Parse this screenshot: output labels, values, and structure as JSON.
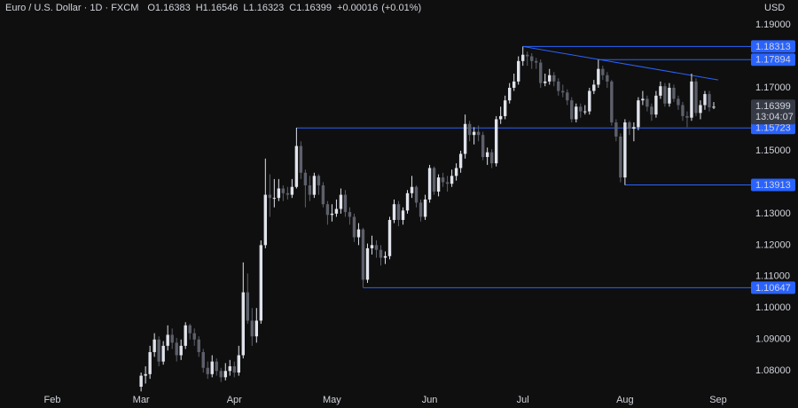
{
  "chart_data": {
    "type": "candlestick",
    "title": "Euro / U.S. Dollar · 1D · FXCM",
    "ohlc_labels": [
      "O",
      "H",
      "L",
      "C"
    ],
    "change": {
      "value": 0.00016,
      "label": "+0.00016"
    },
    "change_pct": {
      "value": 0.01,
      "label": "(+0.01%)"
    },
    "currency": "USD",
    "countdown": "13:04:07",
    "up_color": "#e0e3eb",
    "down_color": "#5d606b",
    "level_color": "#2962ff",
    "grid": false,
    "ylim": [
      1.075,
      1.1979
    ],
    "yticks": [
      {
        "value": 1.19,
        "label": "1.19000"
      },
      {
        "value": 1.17,
        "label": "1.17000"
      },
      {
        "value": 1.15,
        "label": "1.15000"
      },
      {
        "value": 1.13,
        "label": "1.13000"
      },
      {
        "value": 1.12,
        "label": "1.12000"
      },
      {
        "value": 1.11,
        "label": "1.11000"
      },
      {
        "value": 1.1,
        "label": "1.10000"
      },
      {
        "value": 1.09,
        "label": "1.09000"
      },
      {
        "value": 1.08,
        "label": "1.08000"
      }
    ],
    "levels": [
      1.18313,
      1.17894,
      1.15723,
      1.13913,
      1.10647
    ],
    "trendline": [
      1.18313,
      1.1725
    ],
    "categories": [
      "Feb",
      null,
      null,
      null,
      null,
      null,
      null,
      null,
      null,
      null,
      null,
      null,
      null,
      null,
      null,
      null,
      null,
      null,
      null,
      null,
      "Mar",
      null,
      null,
      null,
      null,
      null,
      null,
      null,
      null,
      null,
      null,
      null,
      null,
      null,
      null,
      null,
      null,
      null,
      null,
      null,
      null,
      "Apr",
      null,
      null,
      null,
      null,
      null,
      null,
      null,
      null,
      null,
      null,
      null,
      null,
      null,
      null,
      null,
      null,
      null,
      null,
      null,
      null,
      null,
      "May",
      null,
      null,
      null,
      null,
      null,
      null,
      null,
      null,
      null,
      null,
      null,
      null,
      null,
      null,
      null,
      null,
      null,
      null,
      null,
      null,
      null,
      "Jun",
      null,
      null,
      null,
      null,
      null,
      null,
      null,
      null,
      null,
      null,
      null,
      null,
      null,
      null,
      null,
      null,
      null,
      null,
      null,
      null,
      "Jul",
      null,
      null,
      null,
      null,
      null,
      null,
      null,
      null,
      null,
      null,
      null,
      null,
      null,
      null,
      null,
      null,
      null,
      null,
      null,
      null,
      null,
      null,
      "Aug",
      null,
      null,
      null,
      null,
      null,
      null,
      null,
      null,
      null,
      null,
      null,
      null,
      null,
      null,
      null,
      null,
      null,
      null,
      null,
      null,
      "Sep"
    ],
    "candles": [
      null,
      null,
      null,
      null,
      null,
      null,
      null,
      null,
      null,
      null,
      null,
      null,
      null,
      null,
      null,
      null,
      null,
      null,
      null,
      null,
      [
        1.075,
        1.0795,
        1.0735,
        1.0785
      ],
      [
        1.0785,
        1.0815,
        1.076,
        1.079
      ],
      [
        1.079,
        1.088,
        1.0775,
        1.086
      ],
      [
        1.086,
        1.092,
        1.0845,
        1.09
      ],
      [
        1.09,
        1.091,
        1.0815,
        1.083
      ],
      [
        1.083,
        1.0895,
        1.082,
        1.088
      ],
      [
        1.088,
        1.0945,
        1.0865,
        1.0915
      ],
      [
        1.0915,
        1.0935,
        1.087,
        1.089
      ],
      [
        1.089,
        1.0905,
        1.083,
        1.085
      ],
      [
        1.085,
        1.09,
        1.0835,
        1.088
      ],
      [
        1.088,
        1.0955,
        1.087,
        1.0945
      ],
      [
        1.0945,
        1.095,
        1.09,
        1.092
      ],
      [
        1.092,
        1.0935,
        1.088,
        1.09
      ],
      [
        1.09,
        1.091,
        1.0845,
        1.086
      ],
      [
        1.086,
        1.087,
        1.0795,
        1.081
      ],
      [
        1.081,
        1.083,
        1.0775,
        1.079
      ],
      [
        1.079,
        1.085,
        1.078,
        1.083
      ],
      [
        1.083,
        1.084,
        1.0785,
        1.08
      ],
      [
        1.08,
        1.081,
        1.0765,
        1.078
      ],
      [
        1.078,
        1.0825,
        1.077,
        1.08
      ],
      [
        1.08,
        1.0835,
        1.0785,
        1.0815
      ],
      [
        1.0815,
        1.083,
        1.078,
        1.0795
      ],
      [
        1.0795,
        1.088,
        1.0785,
        1.085
      ],
      [
        1.085,
        1.1145,
        1.084,
        1.105
      ],
      [
        1.105,
        1.111,
        1.095,
        1.096
      ],
      [
        1.096,
        1.1,
        1.088,
        1.091
      ],
      [
        1.091,
        1.1,
        1.089,
        1.096
      ],
      [
        1.096,
        1.1215,
        1.095,
        1.12
      ],
      [
        1.12,
        1.1475,
        1.119,
        1.136
      ],
      [
        1.136,
        1.1425,
        1.129,
        1.135
      ],
      [
        1.135,
        1.141,
        1.132,
        1.135
      ],
      [
        1.135,
        1.141,
        1.134,
        1.138
      ],
      [
        1.138,
        1.139,
        1.134,
        1.1365
      ],
      [
        1.1365,
        1.1385,
        1.1345,
        1.136
      ],
      [
        1.136,
        1.141,
        1.135,
        1.1385
      ],
      [
        1.1385,
        1.1573,
        1.138,
        1.1515
      ],
      [
        1.1515,
        1.153,
        1.141,
        1.143
      ],
      [
        1.143,
        1.144,
        1.132,
        1.139
      ],
      [
        1.139,
        1.142,
        1.134,
        1.136
      ],
      [
        1.136,
        1.143,
        1.135,
        1.142
      ],
      [
        1.142,
        1.1425,
        1.136,
        1.139
      ],
      [
        1.139,
        1.14,
        1.132,
        1.133
      ],
      [
        1.133,
        1.134,
        1.1265,
        1.1296
      ],
      [
        1.1296,
        1.133,
        1.1275,
        1.13
      ],
      [
        1.13,
        1.1345,
        1.129,
        1.1315
      ],
      [
        1.1315,
        1.138,
        1.13,
        1.136
      ],
      [
        1.136,
        1.1375,
        1.129,
        1.1305
      ],
      [
        1.1305,
        1.132,
        1.1265,
        1.129
      ],
      [
        1.129,
        1.13,
        1.121,
        1.1225
      ],
      [
        1.1225,
        1.127,
        1.12,
        1.125
      ],
      [
        1.125,
        1.1255,
        1.1065,
        1.109
      ],
      [
        1.109,
        1.1205,
        1.108,
        1.119
      ],
      [
        1.119,
        1.123,
        1.117,
        1.12
      ],
      [
        1.12,
        1.1215,
        1.116,
        1.1185
      ],
      [
        1.1185,
        1.12,
        1.1135,
        1.116
      ],
      [
        1.116,
        1.118,
        1.114,
        1.1165
      ],
      [
        1.1165,
        1.129,
        1.1155,
        1.128
      ],
      [
        1.128,
        1.1345,
        1.127,
        1.133
      ],
      [
        1.133,
        1.134,
        1.126,
        1.128
      ],
      [
        1.128,
        1.132,
        1.1265,
        1.131
      ],
      [
        1.131,
        1.1375,
        1.13,
        1.1365
      ],
      [
        1.1365,
        1.142,
        1.135,
        1.1385
      ],
      [
        1.1385,
        1.139,
        1.132,
        1.1335
      ],
      [
        1.1335,
        1.1345,
        1.1275,
        1.129
      ],
      [
        1.129,
        1.136,
        1.128,
        1.1345
      ],
      [
        1.1345,
        1.1455,
        1.1335,
        1.1445
      ],
      [
        1.1445,
        1.145,
        1.136,
        1.137
      ],
      [
        1.137,
        1.1425,
        1.1355,
        1.1415
      ],
      [
        1.1415,
        1.143,
        1.1385,
        1.14
      ],
      [
        1.14,
        1.142,
        1.137,
        1.1395
      ],
      [
        1.1395,
        1.144,
        1.1385,
        1.142
      ],
      [
        1.142,
        1.146,
        1.1405,
        1.1445
      ],
      [
        1.1445,
        1.15,
        1.143,
        1.149
      ],
      [
        1.149,
        1.1615,
        1.1475,
        1.1585
      ],
      [
        1.1585,
        1.1595,
        1.153,
        1.155
      ],
      [
        1.155,
        1.1575,
        1.152,
        1.156
      ],
      [
        1.156,
        1.158,
        1.153,
        1.155
      ],
      [
        1.155,
        1.156,
        1.147,
        1.148
      ],
      [
        1.148,
        1.151,
        1.1455,
        1.1495
      ],
      [
        1.1495,
        1.1505,
        1.1445,
        1.146
      ],
      [
        1.146,
        1.161,
        1.145,
        1.16
      ],
      [
        1.16,
        1.164,
        1.1585,
        1.161
      ],
      [
        1.161,
        1.1675,
        1.16,
        1.166
      ],
      [
        1.166,
        1.1715,
        1.165,
        1.17
      ],
      [
        1.17,
        1.1745,
        1.169,
        1.172
      ],
      [
        1.172,
        1.18,
        1.171,
        1.1785
      ],
      [
        1.1785,
        1.1831,
        1.177,
        1.1805
      ],
      [
        1.1805,
        1.1815,
        1.177,
        1.18
      ],
      [
        1.18,
        1.181,
        1.176,
        1.1785
      ],
      [
        1.1785,
        1.1795,
        1.176,
        1.178
      ],
      [
        1.178,
        1.179,
        1.17,
        1.1715
      ],
      [
        1.1715,
        1.1745,
        1.1705,
        1.172
      ],
      [
        1.172,
        1.176,
        1.171,
        1.174
      ],
      [
        1.174,
        1.175,
        1.1705,
        1.172
      ],
      [
        1.172,
        1.173,
        1.1675,
        1.169
      ],
      [
        1.169,
        1.171,
        1.167,
        1.1685
      ],
      [
        1.1685,
        1.1695,
        1.1645,
        1.166
      ],
      [
        1.166,
        1.167,
        1.159,
        1.16
      ],
      [
        1.16,
        1.165,
        1.159,
        1.164
      ],
      [
        1.164,
        1.165,
        1.1605,
        1.1625
      ],
      [
        1.1625,
        1.1645,
        1.1615,
        1.1625
      ],
      [
        1.1625,
        1.17,
        1.1615,
        1.169
      ],
      [
        1.169,
        1.1725,
        1.168,
        1.171
      ],
      [
        1.171,
        1.1789,
        1.17,
        1.176
      ],
      [
        1.176,
        1.177,
        1.1725,
        1.174
      ],
      [
        1.174,
        1.175,
        1.17,
        1.172
      ],
      [
        1.172,
        1.1725,
        1.158,
        1.159
      ],
      [
        1.159,
        1.16,
        1.153,
        1.1545
      ],
      [
        1.1545,
        1.1555,
        1.14,
        1.1415
      ],
      [
        1.1415,
        1.16,
        1.1391,
        1.159
      ],
      [
        1.159,
        1.1595,
        1.155,
        1.157
      ],
      [
        1.157,
        1.159,
        1.153,
        1.1575
      ],
      [
        1.1575,
        1.167,
        1.1565,
        1.166
      ],
      [
        1.166,
        1.169,
        1.1645,
        1.1665
      ],
      [
        1.1665,
        1.1675,
        1.1625,
        1.164
      ],
      [
        1.164,
        1.165,
        1.1595,
        1.1615
      ],
      [
        1.1615,
        1.169,
        1.1605,
        1.1675
      ],
      [
        1.1675,
        1.172,
        1.1665,
        1.1705
      ],
      [
        1.1705,
        1.1715,
        1.164,
        1.165
      ],
      [
        1.165,
        1.1715,
        1.164,
        1.17
      ],
      [
        1.17,
        1.171,
        1.1655,
        1.1665
      ],
      [
        1.1665,
        1.1675,
        1.163,
        1.1645
      ],
      [
        1.1645,
        1.1655,
        1.1595,
        1.161
      ],
      [
        1.161,
        1.1625,
        1.1575,
        1.1605
      ],
      [
        1.1605,
        1.1745,
        1.1595,
        1.172
      ],
      [
        1.172,
        1.173,
        1.161,
        1.162
      ],
      [
        1.162,
        1.166,
        1.16,
        1.1645
      ],
      [
        1.1645,
        1.169,
        1.163,
        1.168
      ],
      [
        1.168,
        1.169,
        1.1625,
        1.1638
      ],
      [
        1.16383,
        1.16546,
        1.16323,
        1.16399
      ],
      null
    ]
  }
}
